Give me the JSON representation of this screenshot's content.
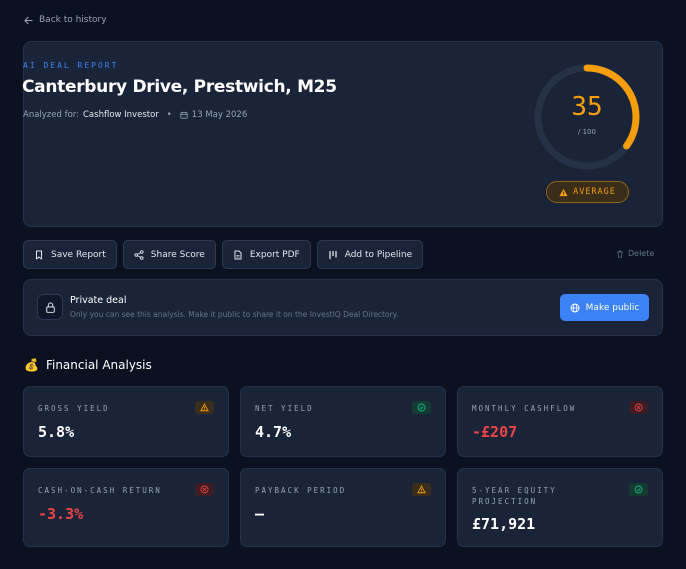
{
  "nav": {
    "back_label": "Back to history"
  },
  "report": {
    "eyebrow": "AI DEAL REPORT",
    "title": "Canterbury Drive, Prestwich, M25",
    "analyzed_prefix": "Analyzed for:",
    "investor_type": "Cashflow Investor",
    "date": "13 May 2026",
    "score": "35",
    "score_max": "/ 100",
    "score_fraction": 0.35,
    "rating": "AVERAGE",
    "accent_color": "#f59e0b"
  },
  "actions": {
    "save": "Save Report",
    "share": "Share Score",
    "export": "Export PDF",
    "pipeline": "Add to Pipeline",
    "delete": "Delete"
  },
  "privacy": {
    "title": "Private deal",
    "subtitle": "Only you can see this analysis. Make it public to share it on the InvestIQ Deal Directory.",
    "button": "Make public"
  },
  "financial": {
    "title": "Financial Analysis",
    "metrics": [
      {
        "label": "GROSS YIELD",
        "value": "5.8%",
        "status": "warning"
      },
      {
        "label": "NET YIELD",
        "value": "4.7%",
        "status": "good"
      },
      {
        "label": "MONTHLY CASHFLOW",
        "value": "-£207",
        "status": "bad"
      },
      {
        "label": "CASH-ON-CASH RETURN",
        "value": "-3.3%",
        "status": "bad"
      },
      {
        "label": "PAYBACK PERIOD",
        "value": "—",
        "status": "warning"
      },
      {
        "label": "5-YEAR EQUITY PROJECTION",
        "value": "£71,921",
        "status": "good"
      }
    ]
  }
}
